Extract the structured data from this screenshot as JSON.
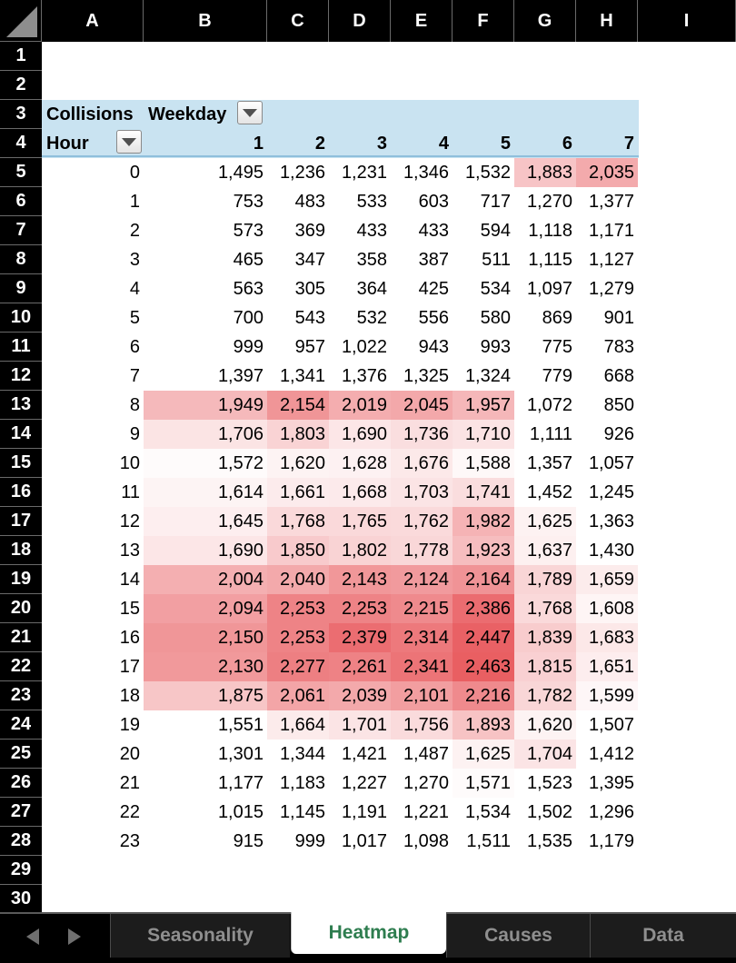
{
  "columns": [
    "A",
    "B",
    "C",
    "D",
    "E",
    "F",
    "G",
    "H",
    "I"
  ],
  "rows": [
    "1",
    "2",
    "3",
    "4",
    "5",
    "6",
    "7",
    "8",
    "9",
    "10",
    "11",
    "12",
    "13",
    "14",
    "15",
    "16",
    "17",
    "18",
    "19",
    "20",
    "21",
    "22",
    "23",
    "24",
    "25",
    "26",
    "27",
    "28",
    "29",
    "30"
  ],
  "pivot": {
    "value_label": "Collisions",
    "column_field": "Weekday",
    "row_field": "Hour",
    "weekdays": [
      "1",
      "2",
      "3",
      "4",
      "5",
      "6",
      "7"
    ],
    "hours": [
      "0",
      "1",
      "2",
      "3",
      "4",
      "5",
      "6",
      "7",
      "8",
      "9",
      "10",
      "11",
      "12",
      "13",
      "14",
      "15",
      "16",
      "17",
      "18",
      "19",
      "20",
      "21",
      "22",
      "23"
    ],
    "values": [
      [
        1495,
        1236,
        1231,
        1346,
        1532,
        1883,
        2035
      ],
      [
        753,
        483,
        533,
        603,
        717,
        1270,
        1377
      ],
      [
        573,
        369,
        433,
        433,
        594,
        1118,
        1171
      ],
      [
        465,
        347,
        358,
        387,
        511,
        1115,
        1127
      ],
      [
        563,
        305,
        364,
        425,
        534,
        1097,
        1279
      ],
      [
        700,
        543,
        532,
        556,
        580,
        869,
        901
      ],
      [
        999,
        957,
        1022,
        943,
        993,
        775,
        783
      ],
      [
        1397,
        1341,
        1376,
        1325,
        1324,
        779,
        668
      ],
      [
        1949,
        2154,
        2019,
        2045,
        1957,
        1072,
        850
      ],
      [
        1706,
        1803,
        1690,
        1736,
        1710,
        1111,
        926
      ],
      [
        1572,
        1620,
        1628,
        1676,
        1588,
        1357,
        1057
      ],
      [
        1614,
        1661,
        1668,
        1703,
        1741,
        1452,
        1245
      ],
      [
        1645,
        1768,
        1765,
        1762,
        1982,
        1625,
        1363
      ],
      [
        1690,
        1850,
        1802,
        1778,
        1923,
        1637,
        1430
      ],
      [
        2004,
        2040,
        2143,
        2124,
        2164,
        1789,
        1659
      ],
      [
        2094,
        2253,
        2253,
        2215,
        2386,
        1768,
        1608
      ],
      [
        2150,
        2253,
        2379,
        2314,
        2447,
        1839,
        1683
      ],
      [
        2130,
        2277,
        2261,
        2341,
        2463,
        1815,
        1651
      ],
      [
        1875,
        2061,
        2039,
        2101,
        2216,
        1782,
        1599
      ],
      [
        1551,
        1664,
        1701,
        1756,
        1893,
        1620,
        1507
      ],
      [
        1301,
        1344,
        1421,
        1487,
        1625,
        1704,
        1412
      ],
      [
        1177,
        1183,
        1227,
        1270,
        1571,
        1523,
        1395
      ],
      [
        1015,
        1145,
        1191,
        1221,
        1534,
        1502,
        1296
      ],
      [
        915,
        999,
        1017,
        1098,
        1511,
        1535,
        1179
      ]
    ],
    "heat_colors": {
      "low": "#ffffff",
      "high": "#e8585c"
    }
  },
  "filter_icon": "dropdown-arrow-icon",
  "sheet_tabs": [
    "Seasonality",
    "Heatmap",
    "Causes",
    "Data"
  ],
  "active_tab": "Heatmap",
  "nav_icons": [
    "chevron-left-icon",
    "chevron-right-icon"
  ]
}
